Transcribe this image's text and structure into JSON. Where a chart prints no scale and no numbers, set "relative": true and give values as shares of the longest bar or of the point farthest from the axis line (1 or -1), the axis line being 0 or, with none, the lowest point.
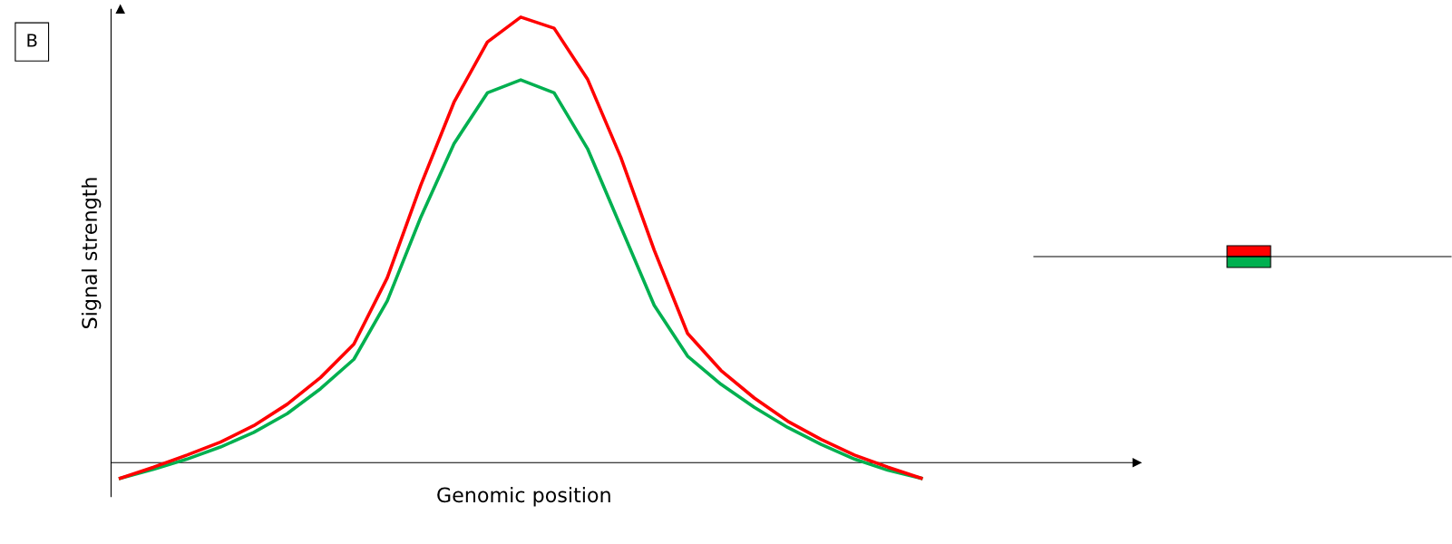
{
  "chart_data": {
    "type": "line",
    "relative": true,
    "xlabel": "Genomic position",
    "ylabel": "Signal strength",
    "annotations": [
      "B"
    ],
    "marker": "none",
    "line_style": "solid",
    "categories": [
      null,
      null,
      null,
      null,
      null,
      null,
      null,
      null,
      null,
      null,
      null,
      null,
      null,
      null,
      null,
      null,
      null,
      null,
      null,
      null,
      null,
      null,
      null,
      null,
      null
    ],
    "series": [
      {
        "color": "#00b050",
        "values": [
          -0.035,
          -0.015,
          0.008,
          0.035,
          0.068,
          0.11,
          0.166,
          0.232,
          0.363,
          0.55,
          0.716,
          0.83,
          0.859,
          0.83,
          0.705,
          0.529,
          0.353,
          0.239,
          0.176,
          0.124,
          0.079,
          0.041,
          0.008,
          -0.017,
          -0.035
        ]
      },
      {
        "color": "#ff0000",
        "values": [
          -0.035,
          -0.01,
          0.017,
          0.046,
          0.083,
          0.131,
          0.191,
          0.266,
          0.415,
          0.622,
          0.809,
          0.944,
          1,
          0.975,
          0.861,
          0.685,
          0.477,
          0.29,
          0.207,
          0.145,
          0.093,
          0.052,
          0.017,
          -0.01,
          -0.035
        ]
      }
    ]
  }
}
